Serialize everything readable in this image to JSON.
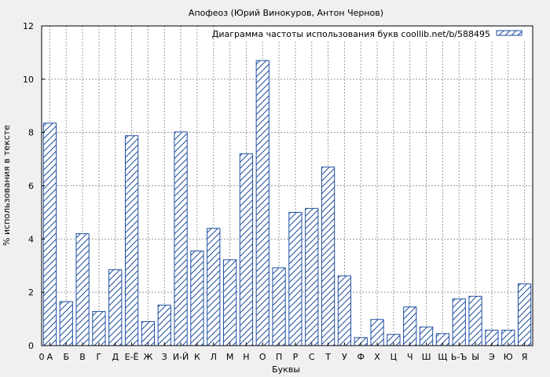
{
  "chart_data": {
    "type": "bar",
    "title": "Апофеоз (Юрий Винокуров, Антон Чернов)",
    "xlabel": "Буквы",
    "ylabel": "% использования в тексте",
    "legend": "Диаграмма частоты использования букв coollib.net/b/588495",
    "legend_position": "top-right",
    "grid": true,
    "ylim": [
      0,
      12
    ],
    "yticks": [
      0,
      2,
      4,
      6,
      8,
      10,
      12
    ],
    "categories": [
      "А",
      "Б",
      "В",
      "Г",
      "Д",
      "Е-Ё",
      "Ж",
      "З",
      "И-Й",
      "К",
      "Л",
      "М",
      "Н",
      "О",
      "П",
      "Р",
      "С",
      "Т",
      "У",
      "Ф",
      "Х",
      "Ц",
      "Ч",
      "Ш",
      "Щ",
      "Ь-Ъ",
      "Ы",
      "Э",
      "Ю",
      "Я"
    ],
    "xtick_labels": [
      "0",
      "А",
      "Б",
      "В",
      "Г",
      "Д",
      "Е-Ё",
      "Ж",
      "З",
      "И-Й",
      "К",
      "Л",
      "М",
      "Н",
      "О",
      "П",
      "Р",
      "С",
      "Т",
      "У",
      "Ф",
      "Х",
      "Ц",
      "Ч",
      "Ш",
      "Щ",
      "Ь-Ъ",
      "Ы",
      "Э",
      "Ю",
      "Я"
    ],
    "values": [
      8.35,
      1.65,
      4.2,
      1.28,
      2.85,
      7.88,
      0.9,
      1.52,
      8.02,
      3.55,
      4.4,
      3.22,
      7.2,
      10.7,
      2.92,
      5.0,
      5.15,
      6.7,
      2.62,
      0.3,
      0.98,
      0.42,
      1.45,
      0.7,
      0.45,
      1.75,
      1.85,
      0.58,
      0.58,
      2.32
    ],
    "colors": {
      "bar_edge": "#1f4fa0",
      "background": "#f0f0f0",
      "plot_bg": "#ffffff",
      "grid": "#999999"
    }
  }
}
